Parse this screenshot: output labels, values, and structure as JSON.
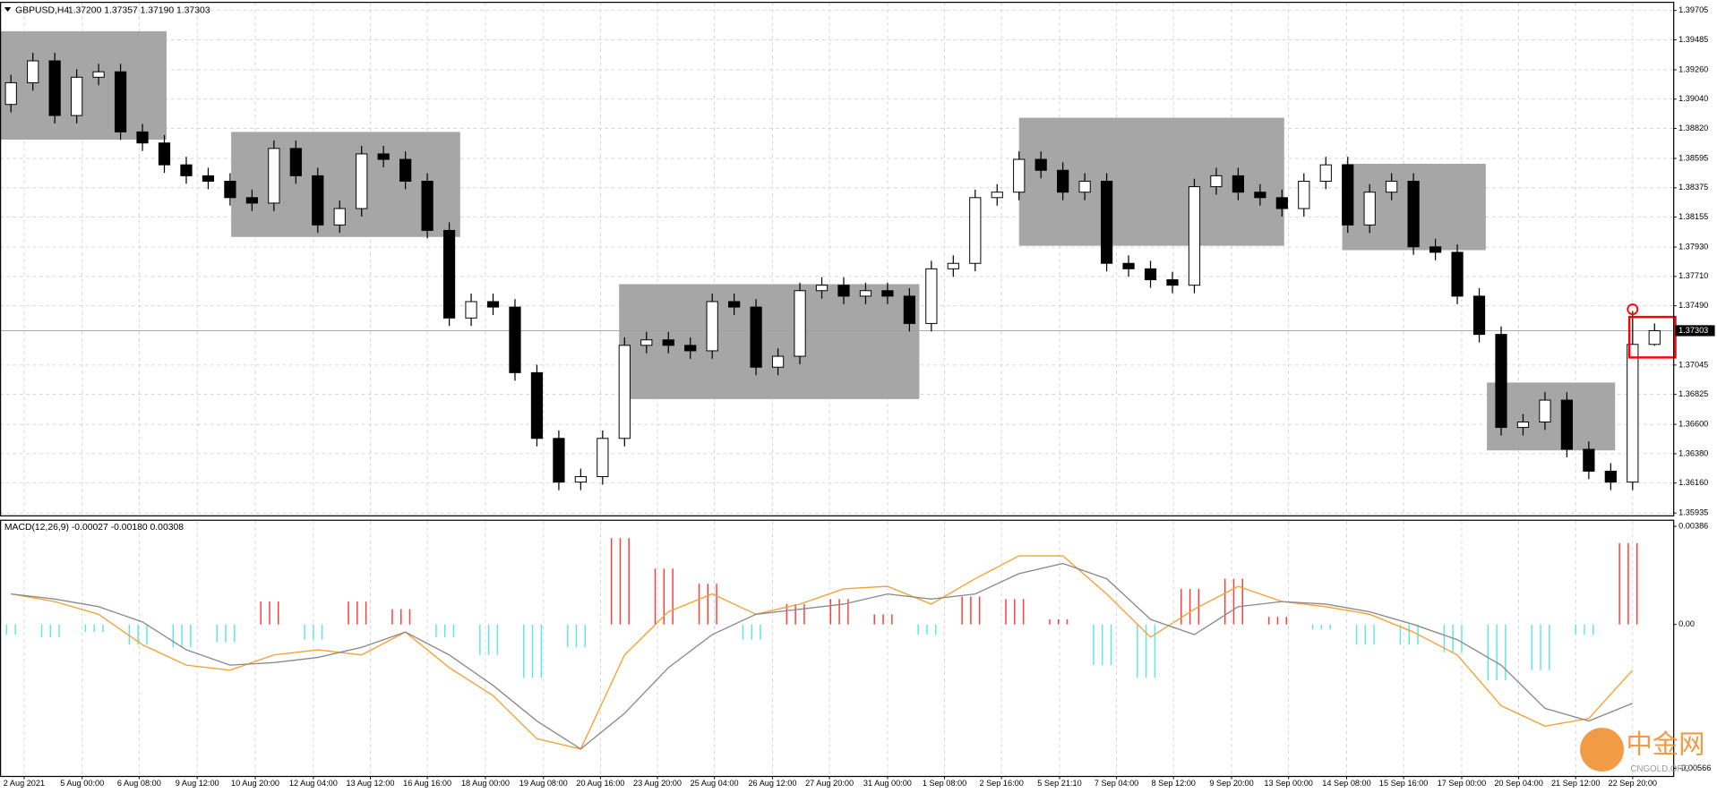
{
  "chart_data": [
    {
      "type": "candlestick",
      "title": "GBPUSD,H4",
      "subtitle": "1.37200 1.37357 1.37190 1.37303",
      "candles": {
        "open": [
          1.39,
          1.39163,
          1.39327,
          1.38917,
          1.39204,
          1.39245,
          1.38794,
          1.38711,
          1.38547,
          1.38465,
          1.38424,
          1.38301,
          1.3826,
          1.3867,
          1.38465,
          1.38096,
          1.38219,
          1.38629,
          1.38588,
          1.38424,
          1.38055,
          1.37398,
          1.37521,
          1.3748,
          1.36988,
          1.36495,
          1.36167,
          1.36208,
          1.36495,
          1.37193,
          1.37234,
          1.37193,
          1.37152,
          1.37521,
          1.3748,
          1.37029,
          1.37111,
          1.37603,
          1.37644,
          1.37562,
          1.37603,
          1.37562,
          1.37357,
          1.37767,
          1.37808,
          1.38301,
          1.38342,
          1.38588,
          1.38506,
          1.38342,
          1.38424,
          1.37808,
          1.37767,
          1.37685,
          1.37644,
          1.38383,
          1.38465,
          1.38342,
          1.38301,
          1.38219,
          1.38424,
          1.38547,
          1.38096,
          1.38342,
          1.38424,
          1.37932,
          1.37891,
          1.37562,
          1.37275,
          1.36577,
          1.36618,
          1.36782,
          1.36413,
          1.36249,
          1.36167,
          1.372
        ],
        "high": [
          1.39223,
          1.39387,
          1.39387,
          1.39264,
          1.39305,
          1.39305,
          1.38854,
          1.38771,
          1.38607,
          1.38525,
          1.38484,
          1.38361,
          1.3873,
          1.3873,
          1.38525,
          1.38279,
          1.38689,
          1.38689,
          1.38648,
          1.38484,
          1.38115,
          1.37581,
          1.37581,
          1.3754,
          1.37048,
          1.36555,
          1.36268,
          1.36555,
          1.37253,
          1.37294,
          1.37294,
          1.37253,
          1.37581,
          1.37581,
          1.3754,
          1.37171,
          1.37663,
          1.37704,
          1.37704,
          1.37663,
          1.37663,
          1.37622,
          1.37827,
          1.37868,
          1.38361,
          1.38402,
          1.38648,
          1.38648,
          1.38566,
          1.38484,
          1.38484,
          1.37868,
          1.37827,
          1.37745,
          1.38443,
          1.38525,
          1.38525,
          1.38402,
          1.38361,
          1.38484,
          1.38607,
          1.38607,
          1.38402,
          1.38484,
          1.38484,
          1.37992,
          1.37951,
          1.37622,
          1.37335,
          1.36678,
          1.36842,
          1.36842,
          1.36473,
          1.36309,
          1.3745,
          1.37357
        ],
        "low": [
          1.3894,
          1.39103,
          1.38857,
          1.38857,
          1.39144,
          1.38734,
          1.38651,
          1.38487,
          1.38405,
          1.38364,
          1.38241,
          1.382,
          1.382,
          1.38405,
          1.38036,
          1.38036,
          1.38159,
          1.38528,
          1.38364,
          1.37995,
          1.37338,
          1.37338,
          1.3742,
          1.36928,
          1.36435,
          1.36107,
          1.36107,
          1.36148,
          1.36435,
          1.37133,
          1.37133,
          1.37092,
          1.37092,
          1.3742,
          1.36969,
          1.36969,
          1.37051,
          1.37543,
          1.37502,
          1.37502,
          1.37502,
          1.37297,
          1.37297,
          1.37707,
          1.37748,
          1.38241,
          1.38282,
          1.38446,
          1.38282,
          1.38282,
          1.37748,
          1.37707,
          1.37625,
          1.37584,
          1.37584,
          1.38323,
          1.38282,
          1.38241,
          1.38159,
          1.38159,
          1.38364,
          1.38036,
          1.38036,
          1.38282,
          1.37872,
          1.37831,
          1.37502,
          1.37215,
          1.36517,
          1.36517,
          1.36558,
          1.36353,
          1.36189,
          1.36107,
          1.36107,
          1.3719
        ],
        "close": [
          1.39163,
          1.39327,
          1.38917,
          1.39204,
          1.39245,
          1.38794,
          1.38711,
          1.38547,
          1.38465,
          1.38424,
          1.38301,
          1.3826,
          1.3867,
          1.38465,
          1.38096,
          1.38219,
          1.38629,
          1.38588,
          1.38424,
          1.38055,
          1.37398,
          1.37521,
          1.3748,
          1.36988,
          1.36495,
          1.36167,
          1.36208,
          1.36495,
          1.37193,
          1.37234,
          1.37193,
          1.37152,
          1.37521,
          1.3748,
          1.37029,
          1.37111,
          1.37603,
          1.37644,
          1.37562,
          1.37603,
          1.37562,
          1.37357,
          1.37767,
          1.37808,
          1.38301,
          1.38342,
          1.38588,
          1.38506,
          1.38342,
          1.38424,
          1.37808,
          1.37767,
          1.37685,
          1.37644,
          1.38383,
          1.38465,
          1.38342,
          1.38301,
          1.38219,
          1.38424,
          1.38547,
          1.38096,
          1.38342,
          1.38424,
          1.37932,
          1.37891,
          1.37562,
          1.37275,
          1.36577,
          1.36618,
          1.36782,
          1.36413,
          1.36249,
          1.36167,
          1.372,
          1.37303
        ]
      },
      "up_color": "#ffffff",
      "down_color": "#000000",
      "xlim": [
        -0.5,
        75.85
      ],
      "ylim": [
        1.35918,
        1.39762
      ],
      "yticks": [
        1.39705,
        1.39485,
        {
          "value": 1.3926,
          "label": "1.39260"
        },
        {
          "value": 1.3904,
          "label": "1.39040"
        },
        {
          "value": 1.3882,
          "label": "1.38820"
        },
        1.38595,
        1.38375,
        1.38155,
        {
          "value": 1.3793,
          "label": "1.37930"
        },
        {
          "value": 1.3771,
          "label": "1.37710"
        },
        {
          "value": 1.3749,
          "label": "1.37490"
        },
        1.37045,
        1.36825,
        {
          "value": 1.366,
          "label": "1.36600"
        },
        {
          "value": 1.3638,
          "label": "1.36380"
        },
        {
          "value": 1.3616,
          "label": "1.36160"
        },
        1.35935
      ],
      "xticks": [
        {
          "value": 0.6,
          "label": "2 Aug 2021"
        },
        {
          "value": 3.25,
          "label": "5 Aug 00:00"
        },
        {
          "value": 5.85,
          "label": "6 Aug 08:00"
        },
        {
          "value": 8.5,
          "label": "9 Aug 12:00"
        },
        {
          "value": 11.15,
          "label": "10 Aug 20:00"
        },
        {
          "value": 13.8,
          "label": "12 Aug 04:00"
        },
        {
          "value": 16.4,
          "label": "13 Aug 12:00"
        },
        {
          "value": 19.0,
          "label": "16 Aug 16:00"
        },
        {
          "value": 21.65,
          "label": "18 Aug 00:00"
        },
        {
          "value": 24.3,
          "label": "19 Aug 08:00"
        },
        {
          "value": 26.9,
          "label": "20 Aug 16:00"
        },
        {
          "value": 29.5,
          "label": "23 Aug 20:00"
        },
        {
          "value": 32.1,
          "label": "25 Aug 04:00"
        },
        {
          "value": 34.75,
          "label": "26 Aug 12:00"
        },
        {
          "value": 37.35,
          "label": "27 Aug 20:00"
        },
        {
          "value": 40.0,
          "label": "31 Aug 00:00"
        },
        {
          "value": 42.6,
          "label": "1 Sep 08:00"
        },
        {
          "value": 45.2,
          "label": "2 Sep 16:00"
        },
        {
          "value": 47.85,
          "label": "5 Sep 21:10"
        },
        {
          "value": 50.45,
          "label": "7 Sep 04:00"
        },
        {
          "value": 53.05,
          "label": "8 Sep 12:00"
        },
        {
          "value": 55.7,
          "label": "9 Sep 20:00"
        },
        {
          "value": 58.3,
          "label": "13 Sep 00:00"
        },
        {
          "value": 60.95,
          "label": "14 Sep 08:00"
        },
        {
          "value": 63.55,
          "label": "15 Sep 16:00"
        },
        {
          "value": 66.2,
          "label": "17 Sep 00:00"
        },
        {
          "value": 68.8,
          "label": "20 Sep 04:00"
        },
        {
          "value": 71.4,
          "label": "21 Sep 12:00"
        },
        {
          "value": 74.0,
          "label": "22 Sep 20:00"
        }
      ],
      "zones": [
        {
          "x": [
            -0.5,
            7.1
          ],
          "y": [
            1.38736,
            1.39549
          ]
        },
        {
          "x": [
            10.05,
            20.5
          ],
          "y": [
            1.38006,
            1.38794
          ]
        },
        {
          "x": [
            27.75,
            41.45
          ],
          "y": [
            1.3679,
            1.37652
          ]
        },
        {
          "x": [
            46.0,
            58.1
          ],
          "y": [
            1.3794,
            1.389
          ]
        },
        {
          "x": [
            60.75,
            67.3
          ],
          "y": [
            1.37907,
            1.38555
          ]
        },
        {
          "x": [
            67.35,
            73.2
          ],
          "y": [
            1.36405,
            1.36914
          ]
        }
      ],
      "zone_color": "#a6a6a6",
      "highlight": {
        "x": [
          73.85,
          75.95
        ],
        "y": [
          1.37102,
          1.37406
        ],
        "color": "#ff0000"
      },
      "grid": true
    },
    {
      "type": "macd",
      "title": "MACD(12,26,9) -0.00027 -0.00180 0.00308",
      "x": [
        0,
        2,
        4,
        6,
        8,
        10,
        12,
        14,
        16,
        18,
        20,
        22,
        24,
        26,
        28,
        30,
        32,
        34,
        36,
        38,
        40,
        42,
        44,
        46,
        48,
        50,
        52,
        54,
        56,
        58,
        60,
        62,
        64,
        66,
        68,
        70,
        72,
        74
      ],
      "histogram": {
        "positive_color": "#ff3b3b",
        "negative_color": "#5ee6e6",
        "values": [
          -0.0004,
          -0.0005,
          -0.0003,
          -0.0008,
          -0.0009,
          -0.0007,
          0.0009,
          -0.0006,
          0.0009,
          0.0006,
          -0.0005,
          -0.0012,
          -0.0021,
          -0.0009,
          0.0034,
          0.0022,
          0.0016,
          -0.0006,
          0.0008,
          0.001,
          0.0004,
          -0.0004,
          0.0011,
          0.001,
          0.0002,
          -0.0016,
          -0.0021,
          0.0014,
          0.0018,
          0.0003,
          -0.0002,
          -0.0008,
          -0.0008,
          -0.0011,
          -0.0022,
          -0.0018,
          -0.0004,
          0.0032
        ]
      },
      "series": [
        {
          "color": "#f5a030",
          "values": [
            0.0012,
            0.0009,
            0.0004,
            -0.0008,
            -0.0016,
            -0.0018,
            -0.0012,
            -0.001,
            -0.0012,
            -0.0003,
            -0.0017,
            -0.0028,
            -0.0045,
            -0.0049,
            -0.0012,
            0.0005,
            0.0012,
            0.0004,
            0.0008,
            0.0014,
            0.0015,
            0.0008,
            0.0018,
            0.0027,
            0.0027,
            0.0012,
            -0.0005,
            0.0006,
            0.0015,
            0.0009,
            0.0007,
            0.0004,
            -0.0003,
            -0.0012,
            -0.0032,
            -0.004,
            -0.0037,
            -0.0018
          ]
        },
        {
          "color": "#8a8a8a",
          "values": [
            0.0012,
            0.001,
            0.0007,
            0.0001,
            -0.001,
            -0.0016,
            -0.0015,
            -0.0013,
            -0.0009,
            -0.0003,
            -0.0012,
            -0.0024,
            -0.0038,
            -0.0049,
            -0.0035,
            -0.0017,
            -0.0004,
            0.0004,
            0.0006,
            0.0008,
            0.0012,
            0.001,
            0.0012,
            0.002,
            0.0024,
            0.0018,
            0.0002,
            -0.0004,
            0.0007,
            0.0009,
            0.0008,
            0.0005,
            0,
            -0.0006,
            -0.0016,
            -0.0033,
            -0.0038,
            -0.0031
          ]
        }
      ],
      "xlim": [
        -0.5,
        75.85
      ],
      "ylim": [
        -0.00596,
        0.00408
      ],
      "yticks": [
        0.00386,
        {
          "value": 0,
          "label": "0.00"
        },
        -0.00566
      ]
    }
  ],
  "watermark": {
    "name": "中金网",
    "site": "CNGOLD.ORG"
  }
}
